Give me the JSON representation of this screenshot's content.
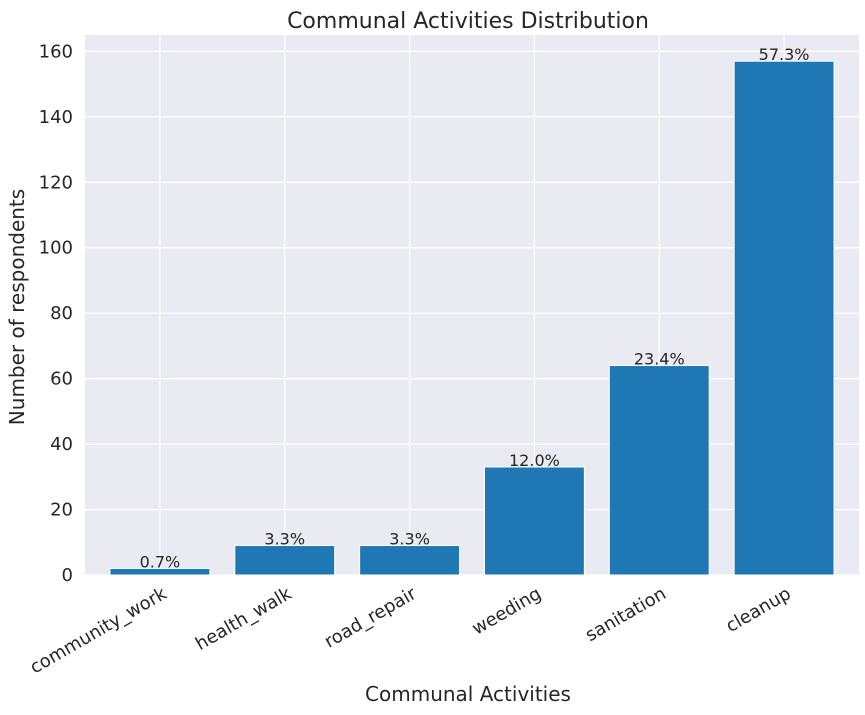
{
  "colors": {
    "background": "#ffffff",
    "plot_background": "#eaeaf2",
    "grid": "#ffffff",
    "bar": "#1f77b4",
    "text": "#262626"
  },
  "chart_data": {
    "type": "bar",
    "title": "Communal Activities Distribution",
    "xlabel": "Communal Activities",
    "ylabel": "Number of respondents",
    "categories": [
      "community_work",
      "health_walk",
      "road_repair",
      "weeding",
      "sanitation",
      "cleanup"
    ],
    "values": [
      2,
      9,
      9,
      33,
      64,
      157
    ],
    "data_labels": [
      "0.7%",
      "3.3%",
      "3.3%",
      "12.0%",
      "23.4%",
      "57.3%"
    ],
    "ylim": [
      0,
      165
    ],
    "yticks": [
      0,
      20,
      40,
      60,
      80,
      100,
      120,
      140,
      160
    ],
    "grid": true,
    "x_tick_rotation_deg": -30
  }
}
